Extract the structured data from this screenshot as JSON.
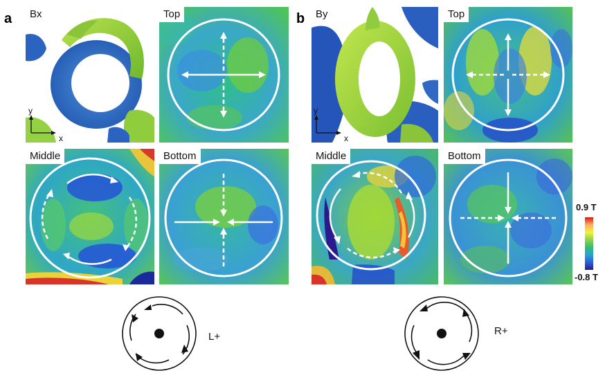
{
  "panels": {
    "a": {
      "letter": "a",
      "component": "Bx",
      "axes": {
        "y": "y",
        "x": "x"
      },
      "slices": {
        "top": "Top",
        "middle": "Middle",
        "bottom": "Bottom"
      },
      "chirality": "L+"
    },
    "b": {
      "letter": "b",
      "component": "By",
      "axes": {
        "y": "y",
        "x": "x"
      },
      "slices": {
        "top": "Top",
        "middle": "Middle",
        "bottom": "Bottom"
      },
      "chirality": "R+"
    }
  },
  "colorbar": {
    "max_label": "0.9 T",
    "min_label": "-0.8 T",
    "colors": [
      "#d7191c",
      "#fdae61",
      "#f2f23c",
      "#8fd14f",
      "#2fbf71",
      "#2aa0d6",
      "#2b5fd9",
      "#2a1a8c"
    ]
  }
}
